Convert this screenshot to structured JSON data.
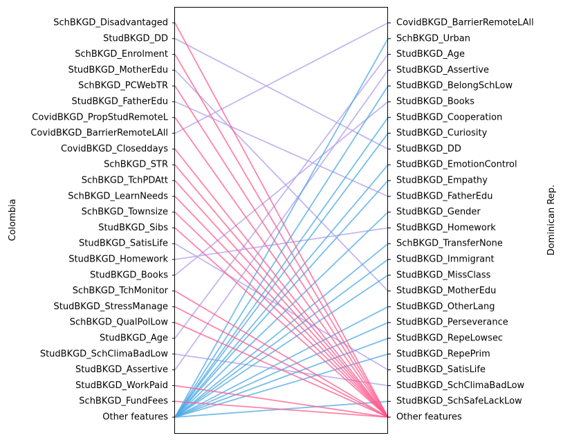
{
  "chart_data": {
    "type": "line",
    "left_axis_label": "Colombia",
    "right_axis_label": "Dominican Rep.",
    "left_features": [
      "SchBKGD_Disadvantaged",
      "StudBKGD_DD",
      "SchBKGD_Enrolment",
      "StudBKGD_MotherEdu",
      "SchBKGD_PCWebTR",
      "StudBKGD_FatherEdu",
      "CovidBKGD_PropStudRemoteL",
      "CovidBKGD_BarrierRemoteLAll",
      "CovidBKGD_Closeddays",
      "SchBKGD_STR",
      "SchBKGD_TchPDAtt",
      "SchBKGD_LearnNeeds",
      "SchBKGD_Townsize",
      "StudBKGD_Sibs",
      "StudBKGD_SatisLife",
      "StudBKGD_Homework",
      "StudBKGD_Books",
      "SchBKGD_TchMonitor",
      "StudBKGD_StressManage",
      "SchBKGD_QualPolLow",
      "StudBKGD_Age",
      "StudBKGD_SchClimaBadLow",
      "StudBKGD_Assertive",
      "StudBKGD_WorkPaid",
      "SchBKGD_FundFees",
      "Other features"
    ],
    "right_features": [
      "CovidBKGD_BarrierRemoteLAll",
      "SchBKGD_Urban",
      "StudBKGD_Age",
      "StudBKGD_Assertive",
      "StudBKGD_BelongSchLow",
      "StudBKGD_Books",
      "StudBKGD_Cooperation",
      "StudBKGD_Curiosity",
      "StudBKGD_DD",
      "StudBKGD_EmotionControl",
      "StudBKGD_Empathy",
      "StudBKGD_FatherEdu",
      "StudBKGD_Gender",
      "StudBKGD_Homework",
      "SchBKGD_TransferNone",
      "StudBKGD_Immigrant",
      "StudBKGD_MissClass",
      "StudBKGD_MotherEdu",
      "StudBKGD_OtherLang",
      "StudBKGD_Perseverance",
      "StudBKGD_RepeLowsec",
      "StudBKGD_RepePrim",
      "StudBKGD_SatisLife",
      "StudBKGD_SchClimaBadLow",
      "StudBKGD_SchSafeLackLow",
      "Other features"
    ],
    "links": [
      {
        "from": "StudBKGD_DD",
        "to": "StudBKGD_DD",
        "kind": "shared"
      },
      {
        "from": "StudBKGD_MotherEdu",
        "to": "StudBKGD_MotherEdu",
        "kind": "shared"
      },
      {
        "from": "StudBKGD_FatherEdu",
        "to": "StudBKGD_FatherEdu",
        "kind": "shared"
      },
      {
        "from": "CovidBKGD_BarrierRemoteLAll",
        "to": "CovidBKGD_BarrierRemoteLAll",
        "kind": "shared"
      },
      {
        "from": "StudBKGD_Homework",
        "to": "StudBKGD_Homework",
        "kind": "shared"
      },
      {
        "from": "StudBKGD_Books",
        "to": "StudBKGD_Books",
        "kind": "shared"
      },
      {
        "from": "StudBKGD_Age",
        "to": "StudBKGD_Age",
        "kind": "shared"
      },
      {
        "from": "StudBKGD_Assertive",
        "to": "StudBKGD_Assertive",
        "kind": "shared"
      },
      {
        "from": "StudBKGD_SatisLife",
        "to": "StudBKGD_SatisLife",
        "kind": "shared"
      },
      {
        "from": "StudBKGD_SchClimaBadLow",
        "to": "StudBKGD_SchClimaBadLow",
        "kind": "shared"
      },
      {
        "from": "SchBKGD_Disadvantaged",
        "to": "Other features",
        "kind": "left-only"
      },
      {
        "from": "SchBKGD_Enrolment",
        "to": "Other features",
        "kind": "left-only"
      },
      {
        "from": "SchBKGD_PCWebTR",
        "to": "Other features",
        "kind": "left-only"
      },
      {
        "from": "CovidBKGD_PropStudRemoteL",
        "to": "Other features",
        "kind": "left-only"
      },
      {
        "from": "CovidBKGD_Closeddays",
        "to": "Other features",
        "kind": "left-only"
      },
      {
        "from": "SchBKGD_STR",
        "to": "Other features",
        "kind": "left-only"
      },
      {
        "from": "SchBKGD_TchPDAtt",
        "to": "Other features",
        "kind": "left-only"
      },
      {
        "from": "SchBKGD_LearnNeeds",
        "to": "Other features",
        "kind": "left-only"
      },
      {
        "from": "SchBKGD_Townsize",
        "to": "Other features",
        "kind": "left-only"
      },
      {
        "from": "StudBKGD_Sibs",
        "to": "Other features",
        "kind": "left-only"
      },
      {
        "from": "SchBKGD_TchMonitor",
        "to": "Other features",
        "kind": "left-only"
      },
      {
        "from": "StudBKGD_StressManage",
        "to": "Other features",
        "kind": "left-only"
      },
      {
        "from": "SchBKGD_QualPolLow",
        "to": "Other features",
        "kind": "left-only"
      },
      {
        "from": "StudBKGD_WorkPaid",
        "to": "Other features",
        "kind": "left-only"
      },
      {
        "from": "SchBKGD_FundFees",
        "to": "Other features",
        "kind": "left-only"
      },
      {
        "from": "Other features",
        "to": "SchBKGD_Urban",
        "kind": "right-only"
      },
      {
        "from": "Other features",
        "to": "StudBKGD_BelongSchLow",
        "kind": "right-only"
      },
      {
        "from": "Other features",
        "to": "StudBKGD_Cooperation",
        "kind": "right-only"
      },
      {
        "from": "Other features",
        "to": "StudBKGD_Curiosity",
        "kind": "right-only"
      },
      {
        "from": "Other features",
        "to": "StudBKGD_EmotionControl",
        "kind": "right-only"
      },
      {
        "from": "Other features",
        "to": "StudBKGD_Empathy",
        "kind": "right-only"
      },
      {
        "from": "Other features",
        "to": "StudBKGD_Gender",
        "kind": "right-only"
      },
      {
        "from": "Other features",
        "to": "SchBKGD_TransferNone",
        "kind": "right-only"
      },
      {
        "from": "Other features",
        "to": "StudBKGD_Immigrant",
        "kind": "right-only"
      },
      {
        "from": "Other features",
        "to": "StudBKGD_MissClass",
        "kind": "right-only"
      },
      {
        "from": "Other features",
        "to": "StudBKGD_OtherLang",
        "kind": "right-only"
      },
      {
        "from": "Other features",
        "to": "StudBKGD_Perseverance",
        "kind": "right-only"
      },
      {
        "from": "Other features",
        "to": "StudBKGD_RepeLowsec",
        "kind": "right-only"
      },
      {
        "from": "Other features",
        "to": "StudBKGD_RepePrim",
        "kind": "right-only"
      },
      {
        "from": "Other features",
        "to": "StudBKGD_SchSafeLackLow",
        "kind": "right-only"
      }
    ],
    "colors": {
      "shared": "#b8a9ee",
      "left-only": "#ff5a8c",
      "right-only": "#4aa8e6"
    },
    "grid": false,
    "legend": "none"
  }
}
